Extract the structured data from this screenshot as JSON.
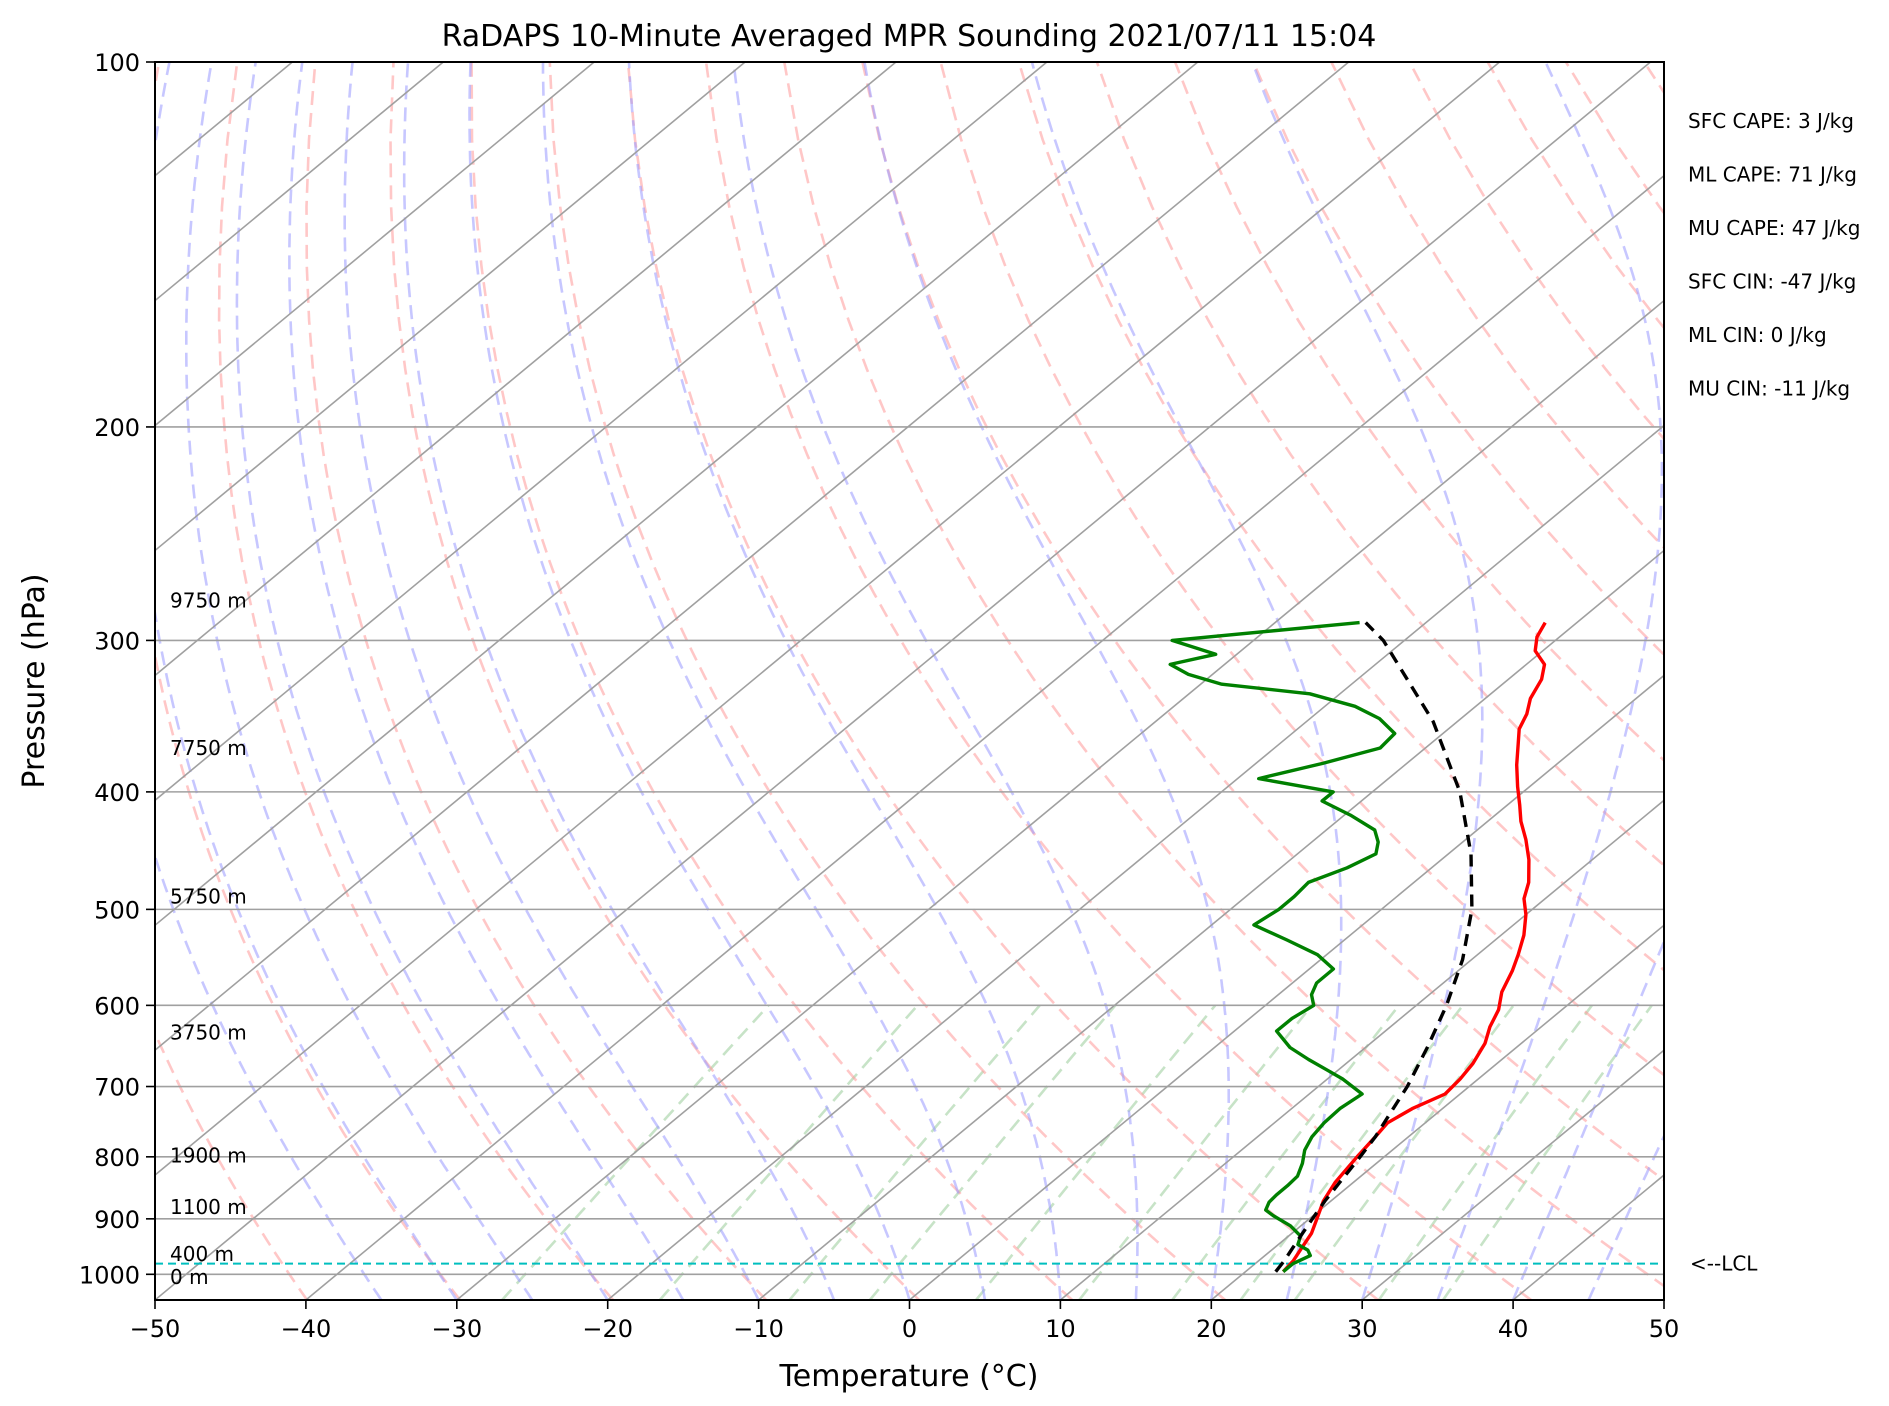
{
  "chart_data": {
    "type": "line",
    "title": "RaDAPS 10-Minute Averaged MPR Sounding 2021/07/11 15:04",
    "xlabel": "Temperature (°C)",
    "ylabel": "Pressure (hPa)",
    "xlim": [
      -50,
      50
    ],
    "ylim": [
      1050,
      100
    ],
    "yscale": "log",
    "skew": "skew-T",
    "grid": true,
    "x_ticks": [
      "−50",
      "−40",
      "−30",
      "−20",
      "−10",
      "0",
      "10",
      "20",
      "30",
      "40",
      "50"
    ],
    "y_ticks": [
      "100",
      "200",
      "300",
      "400",
      "500",
      "600",
      "700",
      "800",
      "900",
      "1000"
    ],
    "colors": {
      "temperature": "#ff0000",
      "dewpoint": "#008000",
      "parcel": "#000000",
      "dry_adiabats": "#ff9999",
      "moist_adiabats": "#9999ff",
      "mixing_ratio": "#99cc99",
      "isotherms": "#a0a0a0",
      "lcl": "#00bfbf"
    },
    "height_labels": [
      {
        "text": "9750 m",
        "p": 278
      },
      {
        "text": "7750 m",
        "p": 368
      },
      {
        "text": "5750 m",
        "p": 488
      },
      {
        "text": "3750 m",
        "p": 632
      },
      {
        "text": "1900 m",
        "p": 798
      },
      {
        "text": "1100 m",
        "p": 880
      },
      {
        "text": "400 m",
        "p": 962
      },
      {
        "text": "0 m",
        "p": 1005
      }
    ],
    "stats": [
      "SFC CAPE: 3 J/kg",
      "ML CAPE: 71 J/kg",
      "MU CAPE: 47 J/kg",
      "SFC CIN: -47 J/kg",
      "ML CIN: 0 J/kg",
      "MU CIN: -11 J/kg"
    ],
    "lcl": {
      "label": "<--LCL",
      "p": 980
    },
    "series": [
      {
        "name": "temperature",
        "points": [
          [
            22.5,
            995
          ],
          [
            22.3,
            975
          ],
          [
            21.8,
            950
          ],
          [
            21.3,
            925
          ],
          [
            20.5,
            900
          ],
          [
            19.5,
            870
          ],
          [
            18.8,
            840
          ],
          [
            18.2,
            800
          ],
          [
            17.8,
            770
          ],
          [
            17.5,
            750
          ],
          [
            18.0,
            730
          ],
          [
            19.0,
            710
          ],
          [
            18.8,
            690
          ],
          [
            18.4,
            670
          ],
          [
            17.6,
            645
          ],
          [
            16.6,
            625
          ],
          [
            15.8,
            605
          ],
          [
            14.6,
            585
          ],
          [
            13.6,
            562
          ],
          [
            12.7,
            545
          ],
          [
            11.5,
            525
          ],
          [
            10.0,
            505
          ],
          [
            8.6,
            490
          ],
          [
            7.6,
            475
          ],
          [
            5.8,
            455
          ],
          [
            4.0,
            438
          ],
          [
            2.2,
            423
          ],
          [
            0.8,
            410
          ],
          [
            -0.8,
            396
          ],
          [
            -2.6,
            380
          ],
          [
            -4.2,
            365
          ],
          [
            -5.3,
            355
          ],
          [
            -6.0,
            345
          ],
          [
            -7.0,
            335
          ],
          [
            -7.8,
            323
          ],
          [
            -8.8,
            314
          ],
          [
            -10.5,
            306
          ],
          [
            -11.5,
            298
          ],
          [
            -12.1,
            290
          ]
        ]
      },
      {
        "name": "dewpoint",
        "points": [
          [
            22.5,
            995
          ],
          [
            22.5,
            980
          ],
          [
            23.0,
            965
          ],
          [
            22.4,
            955
          ],
          [
            21.3,
            945
          ],
          [
            20.8,
            930
          ],
          [
            19.3,
            912
          ],
          [
            17.4,
            895
          ],
          [
            16.4,
            885
          ],
          [
            16.0,
            872
          ],
          [
            15.9,
            860
          ],
          [
            15.9,
            845
          ],
          [
            15.8,
            830
          ],
          [
            15.1,
            810
          ],
          [
            14.2,
            790
          ],
          [
            13.6,
            770
          ],
          [
            13.3,
            750
          ],
          [
            13.2,
            730
          ],
          [
            13.5,
            710
          ],
          [
            11.0,
            690
          ],
          [
            9.2,
            678
          ],
          [
            7.2,
            665
          ],
          [
            5.0,
            650
          ],
          [
            2.8,
            630
          ],
          [
            2.8,
            615
          ],
          [
            3.2,
            600
          ],
          [
            2.2,
            588
          ],
          [
            1.6,
            575
          ],
          [
            1.6,
            560
          ],
          [
            -0.6,
            545
          ],
          [
            -3.8,
            530
          ],
          [
            -7.2,
            515
          ],
          [
            -6.8,
            500
          ],
          [
            -6.8,
            488
          ],
          [
            -7.0,
            475
          ],
          [
            -5.6,
            462
          ],
          [
            -4.8,
            450
          ],
          [
            -5.6,
            440
          ],
          [
            -6.8,
            430
          ],
          [
            -9.6,
            418
          ],
          [
            -12.6,
            407
          ],
          [
            -12.6,
            400
          ],
          [
            -18.6,
            390
          ],
          [
            -15.6,
            379
          ],
          [
            -13.0,
            368
          ],
          [
            -13.2,
            358
          ],
          [
            -15.4,
            348
          ],
          [
            -18.0,
            340
          ],
          [
            -22.0,
            332
          ],
          [
            -28.6,
            326
          ],
          [
            -31.6,
            320
          ],
          [
            -33.6,
            314
          ],
          [
            -31.4,
            308
          ],
          [
            -35.4,
            300
          ],
          [
            -24.4,
            290
          ]
        ]
      },
      {
        "name": "parcel",
        "points": [
          [
            22.0,
            995
          ],
          [
            21.7,
            975
          ],
          [
            21.2,
            950
          ],
          [
            20.7,
            925
          ],
          [
            20.2,
            900
          ],
          [
            19.6,
            870
          ],
          [
            19.1,
            840
          ],
          [
            18.4,
            800
          ],
          [
            17.8,
            770
          ],
          [
            17.0,
            740
          ],
          [
            15.9,
            700
          ],
          [
            14.1,
            650
          ],
          [
            12.0,
            600
          ],
          [
            9.4,
            550
          ],
          [
            6.0,
            500
          ],
          [
            1.5,
            450
          ],
          [
            -4.2,
            400
          ],
          [
            -11.6,
            350
          ],
          [
            -21.4,
            300
          ],
          [
            -24.0,
            290
          ]
        ]
      }
    ]
  }
}
